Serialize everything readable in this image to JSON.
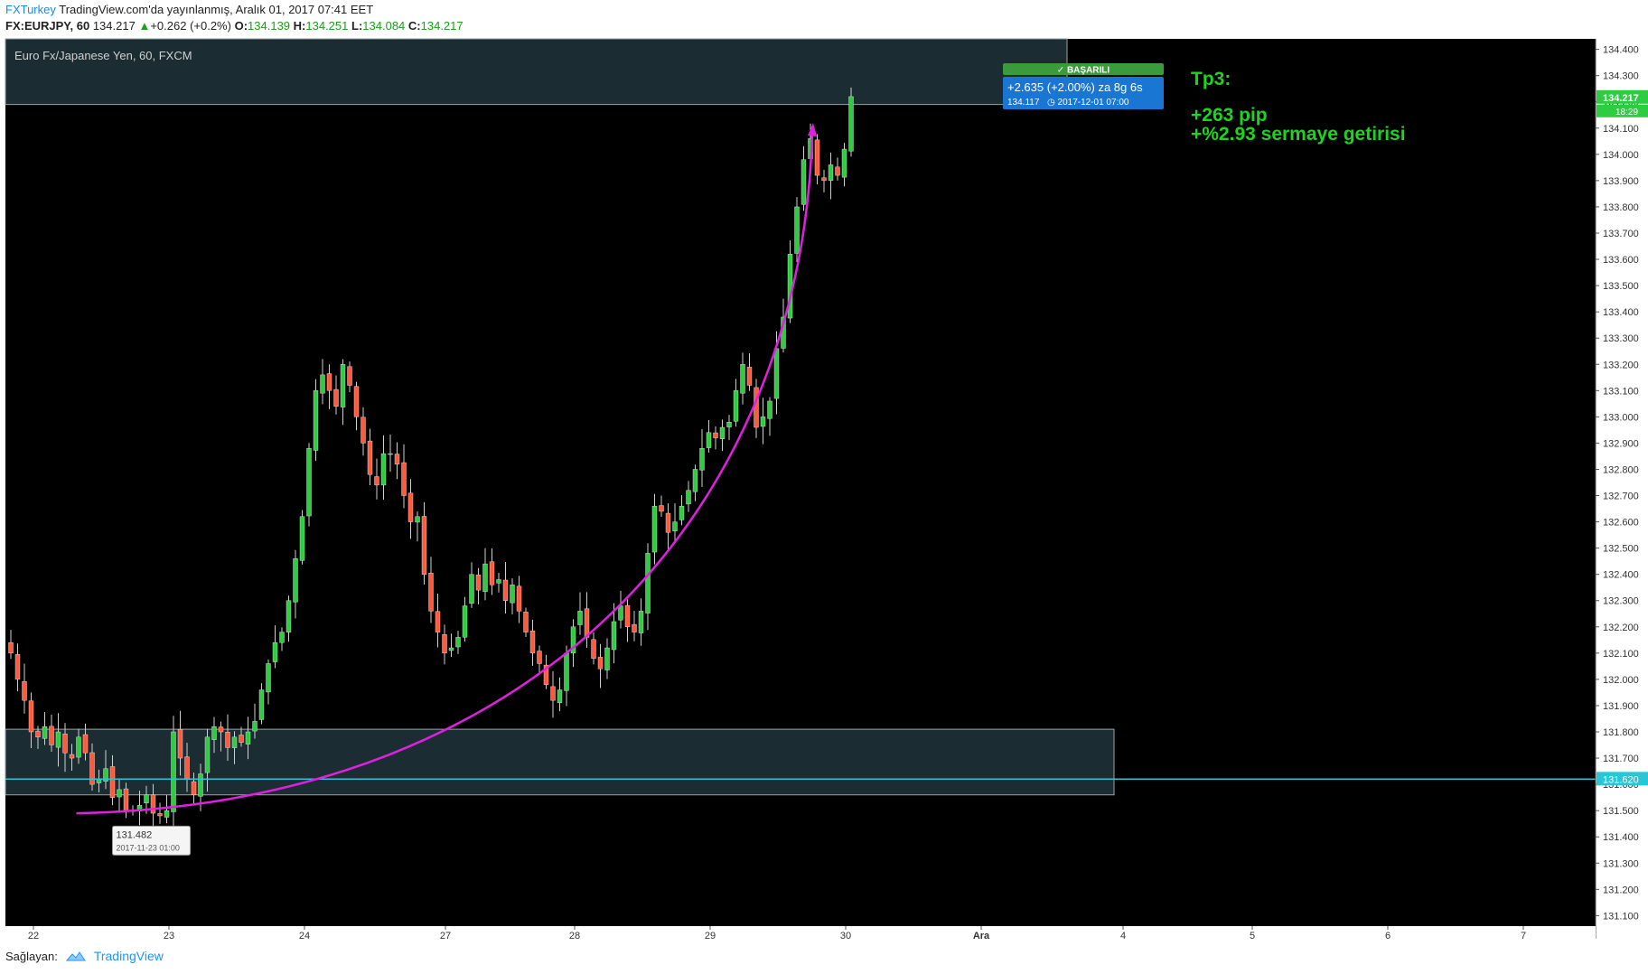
{
  "header": {
    "brand": "FXTurkey",
    "published": "TradingView.com'da yayınlanmış, Aralık 01, 2017 07:41 EET",
    "symbol": "FX:EURJPY, 60",
    "last": "134.217",
    "up_arrow": "▲",
    "change": "+0.262 (+0.2%)",
    "o_label": "O:",
    "o_value": "134.139",
    "h_label": "H:",
    "h_value": "134.251",
    "l_label": "L:",
    "l_value": "134.084",
    "c_label": "C:",
    "c_value": "134.217"
  },
  "footer": {
    "provider_label": "Sağlayan:",
    "tv_label": "TradingView",
    "tv_icon": "cloud-icon"
  },
  "chart_data": {
    "type": "candlestick",
    "legend": "Euro Fx/Japanese Yen, 60, FXCM",
    "ylim": [
      131.06,
      134.44
    ],
    "y_ticks": [
      "134.400",
      "134.300",
      "134.200",
      "134.100",
      "134.000",
      "133.900",
      "133.800",
      "133.700",
      "133.600",
      "133.500",
      "133.400",
      "133.300",
      "133.200",
      "133.100",
      "133.000",
      "132.900",
      "132.800",
      "132.700",
      "132.600",
      "132.500",
      "132.400",
      "132.300",
      "132.200",
      "132.100",
      "132.000",
      "131.900",
      "131.800",
      "131.700",
      "131.600",
      "131.500",
      "131.400",
      "131.300",
      "131.200",
      "131.100"
    ],
    "x_labels": [
      "22",
      "23",
      "24",
      "27",
      "28",
      "29",
      "30",
      "Ara",
      "4",
      "5",
      "6",
      "7"
    ],
    "price_label": "134.217",
    "countdown": "18:29",
    "hline_label": "131.620",
    "hline_value": 131.62,
    "zones": [
      {
        "from": 131.56,
        "to": 131.81
      },
      {
        "from": 134.19,
        "to": 134.44
      }
    ],
    "low_tooltip": {
      "price": "131.482",
      "time": "2017-11-23 01:00",
      "value": 131.482
    },
    "success_badge": "BAŞARILI",
    "measure_line1": "+2.635 (+2.00%) za 8g 6s",
    "measure_price": "134.117",
    "measure_time": "2017-12-01  07:00",
    "arc": {
      "from": [
        7,
        131.49
      ],
      "to": [
        118,
        134.12
      ]
    },
    "tp_title": "Tp3:",
    "tp_pips": "+263 pip",
    "tp_return": "+%2.93 sermaye getirisi",
    "colors": {
      "bull": "#26a69a",
      "bear": "#ef5350",
      "arc": "#e020e0",
      "hline": "#29c6d8",
      "tp": "#1ed41e",
      "badge": "#3b9a3b",
      "measure": "#1976d2"
    },
    "hourly_closes": [
      132.1,
      132.0,
      131.92,
      131.8,
      131.78,
      131.82,
      131.75,
      131.8,
      131.72,
      131.7,
      131.78,
      131.72,
      131.6,
      131.62,
      131.66,
      131.55,
      131.58,
      131.5,
      131.5,
      131.52,
      131.56,
      131.49,
      131.48,
      131.5,
      131.8,
      131.7,
      131.62,
      131.56,
      131.64,
      131.78,
      131.82,
      131.8,
      131.74,
      131.78,
      131.76,
      131.8,
      131.84,
      131.96,
      132.06,
      132.14,
      132.18,
      132.3,
      132.46,
      132.62,
      132.88,
      133.1,
      133.16,
      133.1,
      133.04,
      133.2,
      133.12,
      133.0,
      132.9,
      132.78,
      132.74,
      132.86,
      132.86,
      132.82,
      132.7,
      132.6,
      132.62,
      132.4,
      132.26,
      132.18,
      132.1,
      132.12,
      132.16,
      132.28,
      132.4,
      132.34,
      132.44,
      132.36,
      132.38,
      132.3,
      132.36,
      132.26,
      132.18,
      132.1,
      132.06,
      131.98,
      131.92,
      131.96,
      132.1,
      132.2,
      132.26,
      132.16,
      132.08,
      132.04,
      132.12,
      132.22,
      132.28,
      132.2,
      132.18,
      132.26,
      132.48,
      132.66,
      132.64,
      132.56,
      132.6,
      132.66,
      132.72,
      132.8,
      132.88,
      132.94,
      132.92,
      132.96,
      132.98,
      133.1,
      133.2,
      133.12,
      132.96,
      133.0,
      133.06,
      133.26,
      133.38,
      133.62,
      133.8,
      133.98,
      134.06,
      133.92,
      133.9,
      133.96,
      133.92,
      134.02,
      134.22
    ]
  }
}
